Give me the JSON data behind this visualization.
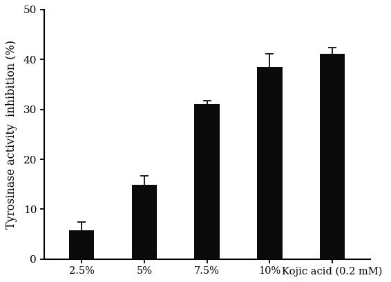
{
  "categories": [
    "2.5%",
    "5%",
    "7.5%",
    "10%",
    "Kojic acid (0.2 mM)"
  ],
  "values": [
    5.8,
    14.9,
    31.0,
    38.5,
    41.2
  ],
  "errors": [
    1.7,
    1.8,
    0.8,
    2.6,
    1.2
  ],
  "bar_color": "#0a0a0a",
  "bar_width": 0.4,
  "ylabel": "Tyrosinase activity  inhibition (%)",
  "ylim": [
    0,
    50
  ],
  "yticks": [
    0,
    10,
    20,
    30,
    40,
    50
  ],
  "background_color": "#ffffff",
  "ylabel_fontsize": 11.5,
  "tick_fontsize": 11,
  "xtick_fontsize": 10.5,
  "error_capsize": 4,
  "error_linewidth": 1.3,
  "error_color": "#0a0a0a",
  "spine_linewidth": 1.5
}
